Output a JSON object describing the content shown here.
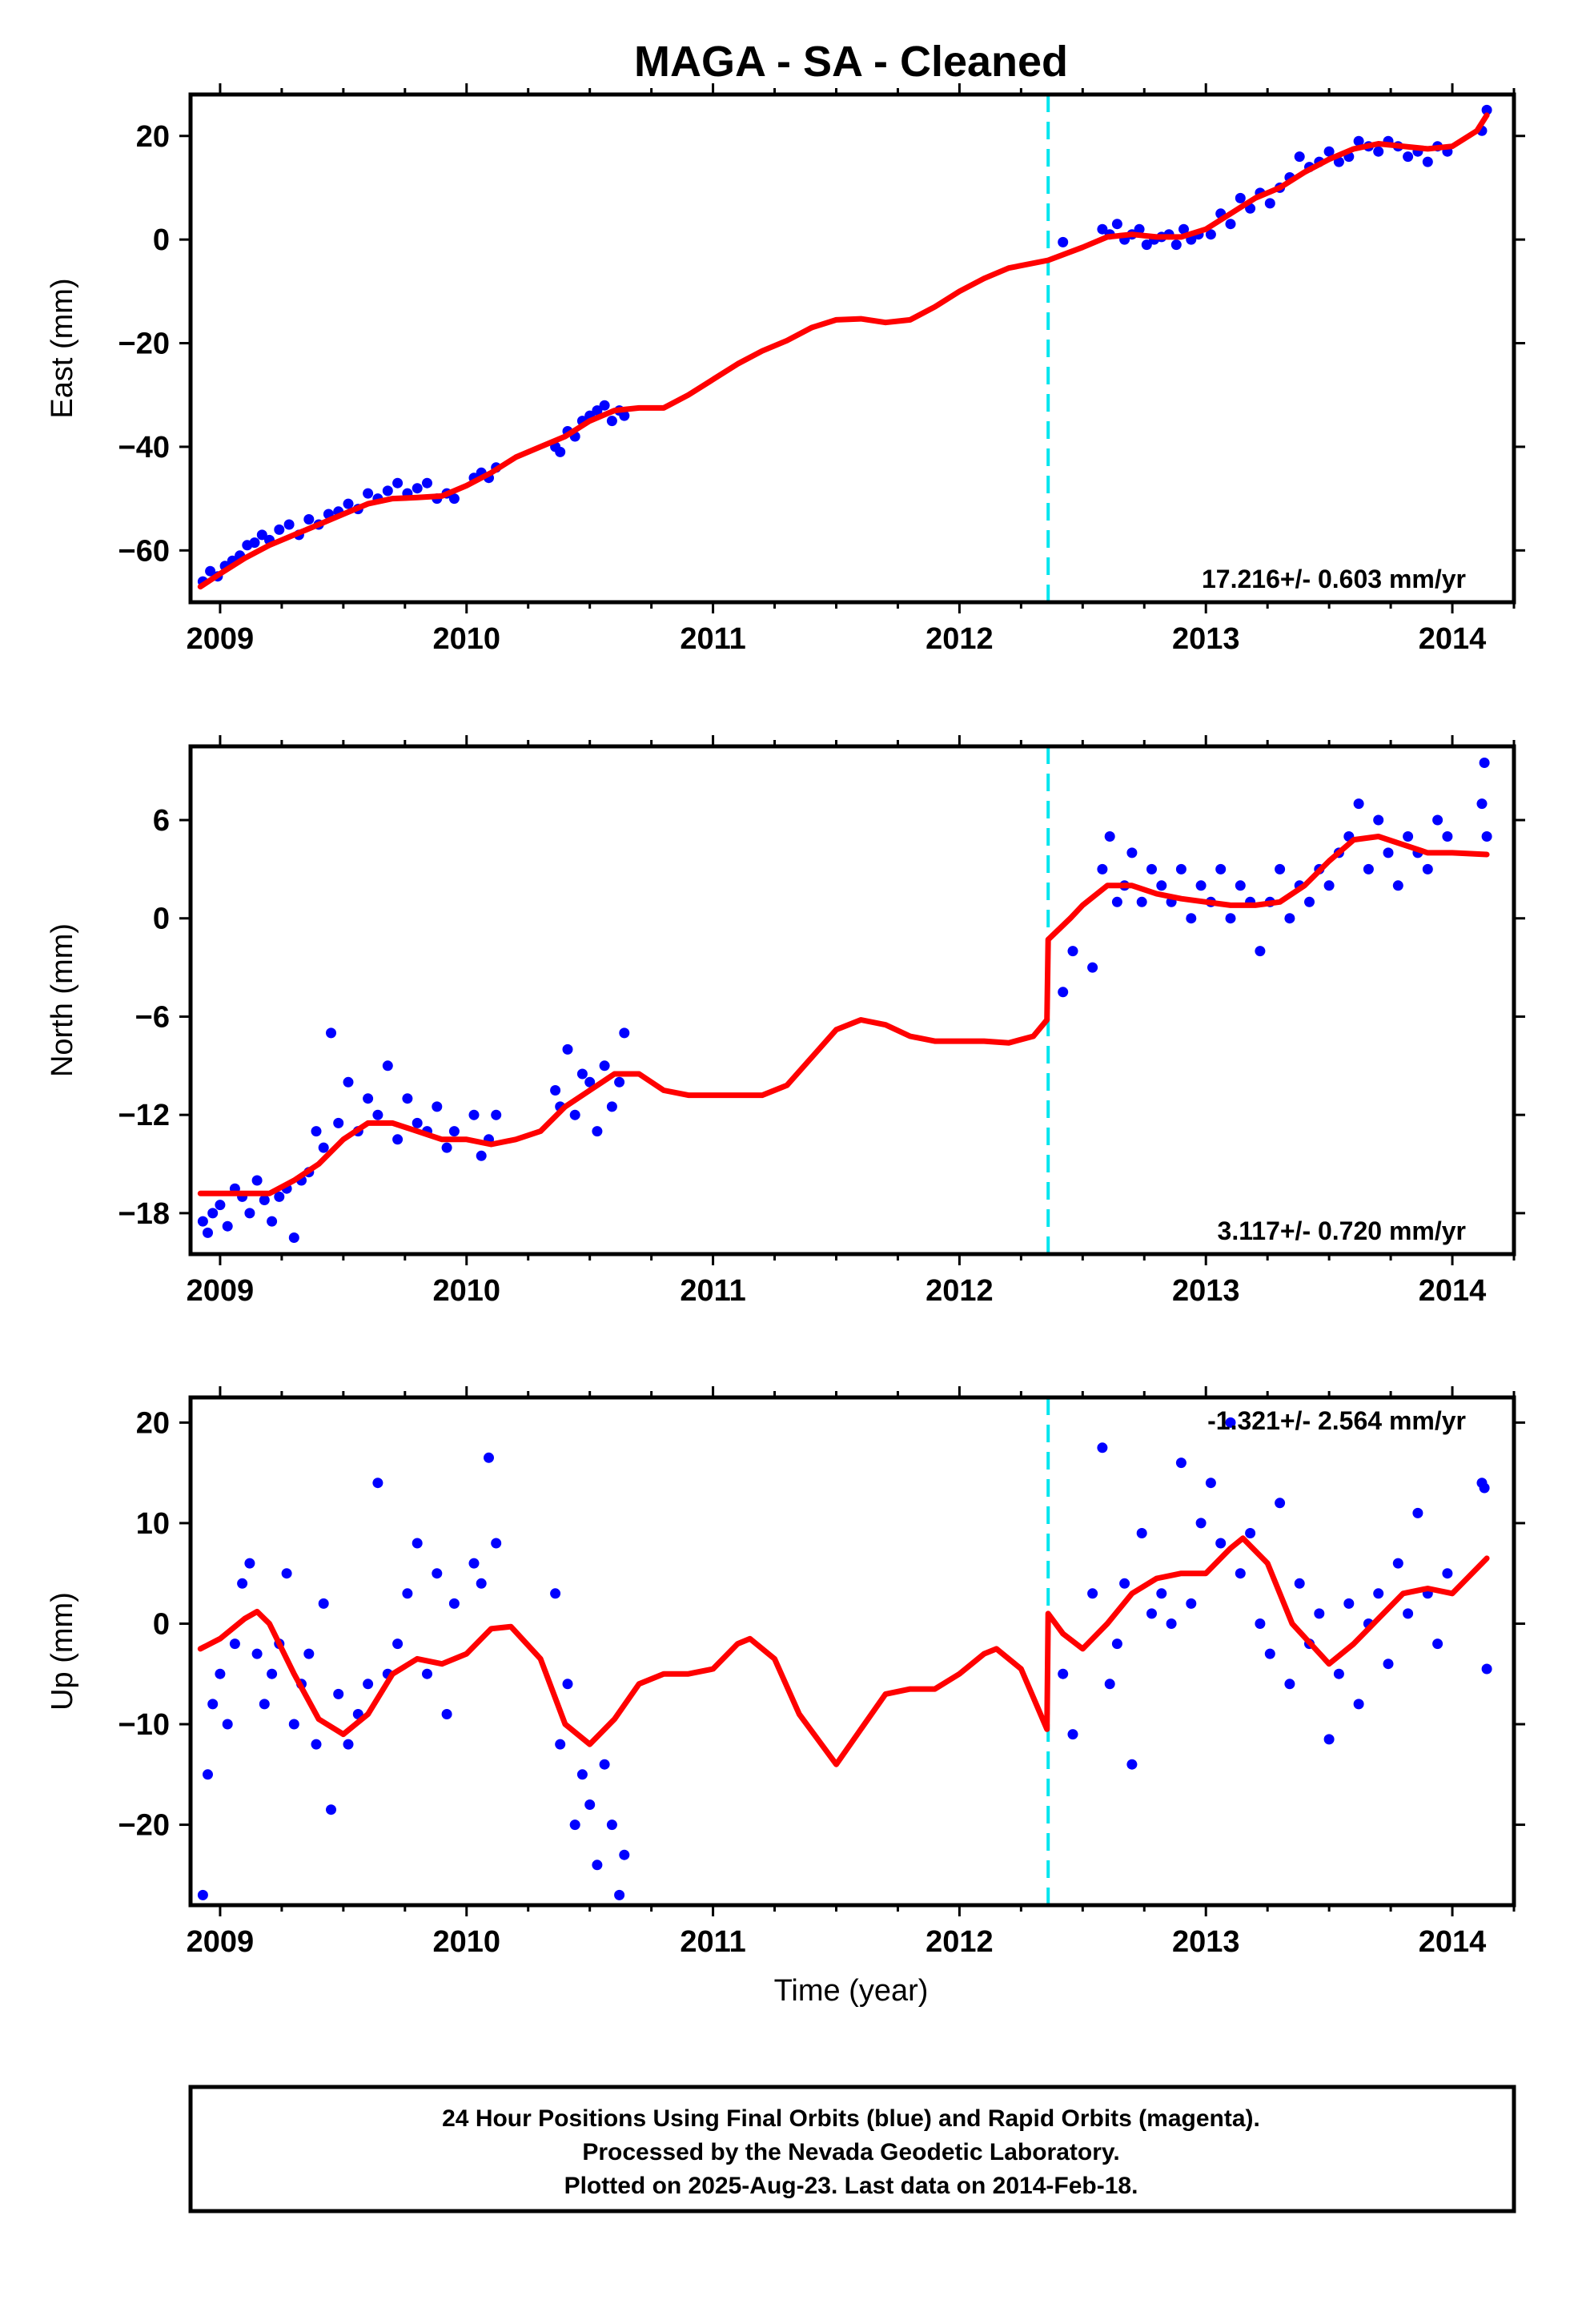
{
  "title": "MAGA  - SA - Cleaned",
  "xlabel": "Time (year)",
  "caption": {
    "line1": "24 Hour Positions Using Final Orbits (blue) and Rapid Orbits (magenta).",
    "line2": "Processed by the Nevada Geodetic Laboratory.",
    "line3": "Plotted on 2025-Aug-23. Last data on 2014-Feb-18."
  },
  "colors": {
    "data": "#0000ff",
    "model": "#ff0000",
    "offset": "#00e5ee",
    "axes": "#000000"
  },
  "chart_data": [
    {
      "type": "scatter",
      "ylabel": "East (mm)",
      "rate": "17.216+/- 0.603 mm/yr",
      "xlim": [
        2008.88,
        2014.25
      ],
      "ylim": [
        -70,
        28
      ],
      "xticks": [
        2009,
        2010,
        2011,
        2012,
        2013,
        2014
      ],
      "yticks": [
        -60,
        -40,
        -20,
        0,
        20
      ],
      "offset_line_x": 2012.36,
      "model": {
        "x": [
          2008.92,
          2009.0,
          2009.1,
          2009.2,
          2009.3,
          2009.4,
          2009.5,
          2009.6,
          2009.7,
          2009.8,
          2009.9,
          2010.0,
          2010.1,
          2010.2,
          2010.3,
          2010.4,
          2010.5,
          2010.6,
          2010.7,
          2010.8,
          2010.9,
          2011.0,
          2011.1,
          2011.2,
          2011.3,
          2011.4,
          2011.5,
          2011.6,
          2011.7,
          2011.8,
          2011.9,
          2012.0,
          2012.1,
          2012.2,
          2012.36,
          2012.5,
          2012.6,
          2012.7,
          2012.8,
          2012.9,
          2013.0,
          2013.1,
          2013.2,
          2013.3,
          2013.4,
          2013.5,
          2013.6,
          2013.7,
          2013.8,
          2013.9,
          2014.0,
          2014.1,
          2014.14
        ],
        "y": [
          -67,
          -64.5,
          -61.5,
          -59,
          -57,
          -55,
          -53,
          -51,
          -50,
          -49.8,
          -49.5,
          -47.5,
          -45,
          -42,
          -40,
          -38,
          -35,
          -33,
          -32.5,
          -32.5,
          -30,
          -27,
          -24,
          -21.5,
          -19.5,
          -17,
          -15.5,
          -15.3,
          -16,
          -15.5,
          -13,
          -10,
          -7.5,
          -5.5,
          -4,
          -1.5,
          0.5,
          1,
          0.5,
          0.5,
          2,
          5,
          8,
          10,
          13,
          15.5,
          17.5,
          18.5,
          18,
          17.5,
          18,
          21,
          24
        ]
      },
      "points": {
        "x": [
          2008.93,
          2008.96,
          2008.99,
          2009.02,
          2009.05,
          2009.08,
          2009.11,
          2009.14,
          2009.17,
          2009.2,
          2009.24,
          2009.28,
          2009.32,
          2009.36,
          2009.4,
          2009.44,
          2009.48,
          2009.52,
          2009.56,
          2009.6,
          2009.64,
          2009.68,
          2009.72,
          2009.76,
          2009.8,
          2009.84,
          2009.88,
          2009.92,
          2009.95,
          2010.03,
          2010.06,
          2010.09,
          2010.12,
          2010.36,
          2010.38,
          2010.41,
          2010.44,
          2010.47,
          2010.5,
          2010.53,
          2010.56,
          2010.59,
          2010.62,
          2010.64,
          2012.42,
          2012.58,
          2012.61,
          2012.64,
          2012.67,
          2012.7,
          2012.73,
          2012.76,
          2012.79,
          2012.82,
          2012.85,
          2012.88,
          2012.91,
          2012.94,
          2012.97,
          2013.02,
          2013.06,
          2013.1,
          2013.14,
          2013.18,
          2013.22,
          2013.26,
          2013.3,
          2013.34,
          2013.38,
          2013.42,
          2013.46,
          2013.5,
          2013.54,
          2013.58,
          2013.62,
          2013.66,
          2013.7,
          2013.74,
          2013.78,
          2013.82,
          2013.86,
          2013.9,
          2013.94,
          2013.98,
          2014.12,
          2014.14
        ],
        "y": [
          -66,
          -64,
          -65,
          -63,
          -62,
          -61,
          -59,
          -58.5,
          -57,
          -58,
          -56,
          -55,
          -57,
          -54,
          -55,
          -53,
          -52.5,
          -51,
          -52,
          -49,
          -50,
          -48.5,
          -47,
          -49,
          -48,
          -47,
          -50,
          -49,
          -50,
          -46,
          -45,
          -46,
          -44,
          -40,
          -41,
          -37,
          -38,
          -35,
          -34,
          -33,
          -32,
          -35,
          -33,
          -34,
          -0.5,
          2,
          1,
          3,
          0,
          1,
          2,
          -1,
          0,
          0.5,
          1,
          -1,
          2,
          0,
          1,
          1,
          5,
          3,
          8,
          6,
          9,
          7,
          10,
          12,
          16,
          14,
          15,
          17,
          15,
          16,
          19,
          18,
          17,
          19,
          18,
          16,
          17,
          15,
          18,
          17,
          21,
          25
        ]
      }
    },
    {
      "type": "scatter",
      "ylabel": "North (mm)",
      "rate": "3.117+/- 0.720 mm/yr",
      "xlim": [
        2008.88,
        2014.25
      ],
      "ylim": [
        -20.5,
        10.5
      ],
      "xticks": [
        2009,
        2010,
        2011,
        2012,
        2013,
        2014
      ],
      "yticks": [
        -18,
        -12,
        -6,
        0,
        6
      ],
      "offset_line_x": 2012.36,
      "model": {
        "x": [
          2008.92,
          2009.0,
          2009.1,
          2009.2,
          2009.3,
          2009.4,
          2009.5,
          2009.6,
          2009.7,
          2009.8,
          2009.9,
          2010.0,
          2010.1,
          2010.2,
          2010.3,
          2010.4,
          2010.5,
          2010.6,
          2010.7,
          2010.8,
          2010.9,
          2011.0,
          2011.1,
          2011.2,
          2011.3,
          2011.4,
          2011.5,
          2011.6,
          2011.7,
          2011.8,
          2011.9,
          2012.0,
          2012.1,
          2012.2,
          2012.3,
          2012.355,
          2012.36,
          2012.45,
          2012.5,
          2012.6,
          2012.7,
          2012.8,
          2012.9,
          2013.0,
          2013.1,
          2013.2,
          2013.3,
          2013.4,
          2013.5,
          2013.6,
          2013.7,
          2013.8,
          2013.9,
          2014.0,
          2014.14
        ],
        "y": [
          -16.8,
          -16.8,
          -16.8,
          -16.8,
          -16,
          -15,
          -13.5,
          -12.5,
          -12.5,
          -13,
          -13.5,
          -13.5,
          -13.8,
          -13.5,
          -13,
          -11.5,
          -10.5,
          -9.5,
          -9.5,
          -10.5,
          -10.8,
          -10.8,
          -10.8,
          -10.8,
          -10.2,
          -8.5,
          -6.8,
          -6.2,
          -6.5,
          -7.2,
          -7.5,
          -7.5,
          -7.5,
          -7.6,
          -7.2,
          -6.2,
          -1.3,
          0,
          0.8,
          2,
          2,
          1.5,
          1.2,
          1.0,
          0.8,
          0.8,
          1,
          2,
          3.5,
          4.8,
          5,
          4.5,
          4,
          4,
          3.9
        ]
      },
      "points": {
        "x": [
          2008.93,
          2008.95,
          2008.97,
          2009.0,
          2009.03,
          2009.06,
          2009.09,
          2009.12,
          2009.15,
          2009.18,
          2009.21,
          2009.24,
          2009.27,
          2009.3,
          2009.33,
          2009.36,
          2009.39,
          2009.42,
          2009.45,
          2009.48,
          2009.52,
          2009.56,
          2009.6,
          2009.64,
          2009.68,
          2009.72,
          2009.76,
          2009.8,
          2009.84,
          2009.88,
          2009.92,
          2009.95,
          2010.03,
          2010.06,
          2010.09,
          2010.12,
          2010.36,
          2010.38,
          2010.41,
          2010.44,
          2010.47,
          2010.5,
          2010.53,
          2010.56,
          2010.59,
          2010.62,
          2010.64,
          2012.42,
          2012.46,
          2012.54,
          2012.58,
          2012.61,
          2012.64,
          2012.67,
          2012.7,
          2012.74,
          2012.78,
          2012.82,
          2012.86,
          2012.9,
          2012.94,
          2012.98,
          2013.02,
          2013.06,
          2013.1,
          2013.14,
          2013.18,
          2013.22,
          2013.26,
          2013.3,
          2013.34,
          2013.38,
          2013.42,
          2013.46,
          2013.5,
          2013.54,
          2013.58,
          2013.62,
          2013.66,
          2013.7,
          2013.74,
          2013.78,
          2013.82,
          2013.86,
          2013.9,
          2013.94,
          2013.98,
          2014.12,
          2014.13,
          2014.14
        ],
        "y": [
          -18.5,
          -19.2,
          -18,
          -17.5,
          -18.8,
          -16.5,
          -17,
          -18,
          -16,
          -17.2,
          -18.5,
          -17,
          -16.5,
          -19.5,
          -16,
          -15.5,
          -13,
          -14,
          -7,
          -12.5,
          -10,
          -13,
          -11,
          -12,
          -9,
          -13.5,
          -11,
          -12.5,
          -13,
          -11.5,
          -14,
          -13,
          -12,
          -14.5,
          -13.5,
          -12,
          -10.5,
          -11.5,
          -8,
          -12,
          -9.5,
          -10,
          -13,
          -9,
          -11.5,
          -10,
          -7,
          -4.5,
          -2,
          -3,
          3,
          5,
          1,
          2,
          4,
          1,
          3,
          2,
          1,
          3,
          0,
          2,
          1,
          3,
          0,
          2,
          1,
          -2,
          1,
          3,
          0,
          2,
          1,
          3,
          2,
          4,
          5,
          7,
          3,
          6,
          4,
          2,
          5,
          4,
          3,
          6,
          5,
          7,
          9.5,
          5
        ]
      }
    },
    {
      "type": "scatter",
      "ylabel": "Up (mm)",
      "rate": "-1.321+/- 2.564 mm/yr",
      "xlim": [
        2008.88,
        2014.25
      ],
      "ylim": [
        -28,
        22.5
      ],
      "xticks": [
        2009,
        2010,
        2011,
        2012,
        2013,
        2014
      ],
      "yticks": [
        -20,
        -10,
        0,
        10,
        20
      ],
      "offset_line_x": 2012.36,
      "model": {
        "x": [
          2008.92,
          2009.0,
          2009.1,
          2009.15,
          2009.2,
          2009.3,
          2009.4,
          2009.5,
          2009.6,
          2009.7,
          2009.8,
          2009.9,
          2010.0,
          2010.1,
          2010.18,
          2010.3,
          2010.4,
          2010.5,
          2010.6,
          2010.7,
          2010.8,
          2010.9,
          2011.0,
          2011.1,
          2011.15,
          2011.25,
          2011.35,
          2011.5,
          2011.6,
          2011.7,
          2011.8,
          2011.9,
          2012.0,
          2012.1,
          2012.15,
          2012.25,
          2012.355,
          2012.36,
          2012.42,
          2012.5,
          2012.6,
          2012.7,
          2012.8,
          2012.9,
          2013.0,
          2013.1,
          2013.15,
          2013.25,
          2013.35,
          2013.5,
          2013.6,
          2013.7,
          2013.8,
          2013.9,
          2014.0,
          2014.14
        ],
        "y": [
          -2.5,
          -1.5,
          0.5,
          1.2,
          0,
          -5,
          -9.5,
          -11,
          -9,
          -5,
          -3.5,
          -4,
          -3,
          -0.5,
          -0.3,
          -3.5,
          -10,
          -12,
          -9.5,
          -6,
          -5,
          -5,
          -4.5,
          -2,
          -1.5,
          -3.5,
          -9,
          -14,
          -10.5,
          -7,
          -6.5,
          -6.5,
          -5,
          -3,
          -2.5,
          -4.5,
          -10.5,
          1,
          -1,
          -2.5,
          0,
          3,
          4.5,
          5,
          5,
          7.5,
          8.5,
          6,
          0,
          -4,
          -2,
          0.5,
          3,
          3.5,
          3,
          6.5
        ]
      },
      "points": {
        "x": [
          2008.93,
          2008.95,
          2008.97,
          2009.0,
          2009.03,
          2009.06,
          2009.09,
          2009.12,
          2009.15,
          2009.18,
          2009.21,
          2009.24,
          2009.27,
          2009.3,
          2009.33,
          2009.36,
          2009.39,
          2009.42,
          2009.45,
          2009.48,
          2009.52,
          2009.56,
          2009.6,
          2009.64,
          2009.68,
          2009.72,
          2009.76,
          2009.8,
          2009.84,
          2009.88,
          2009.92,
          2009.95,
          2010.03,
          2010.06,
          2010.09,
          2010.12,
          2010.36,
          2010.38,
          2010.41,
          2010.44,
          2010.47,
          2010.5,
          2010.53,
          2010.56,
          2010.59,
          2010.62,
          2010.64,
          2012.42,
          2012.46,
          2012.54,
          2012.58,
          2012.61,
          2012.64,
          2012.67,
          2012.7,
          2012.74,
          2012.78,
          2012.82,
          2012.86,
          2012.9,
          2012.94,
          2012.98,
          2013.02,
          2013.06,
          2013.1,
          2013.14,
          2013.18,
          2013.22,
          2013.26,
          2013.3,
          2013.34,
          2013.38,
          2013.42,
          2013.46,
          2013.5,
          2013.54,
          2013.58,
          2013.62,
          2013.66,
          2013.7,
          2013.74,
          2013.78,
          2013.82,
          2013.86,
          2013.9,
          2013.94,
          2013.98,
          2014.12,
          2014.13,
          2014.14
        ],
        "y": [
          -27,
          -15,
          -8,
          -5,
          -10,
          -2,
          4,
          6,
          -3,
          -8,
          -5,
          -2,
          5,
          -10,
          -6,
          -3,
          -12,
          2,
          -18.5,
          -7,
          -12,
          -9,
          -6,
          14,
          -5,
          -2,
          3,
          8,
          -5,
          5,
          -9,
          2,
          6,
          4,
          16.5,
          8,
          3,
          -12,
          -6,
          -20,
          -15,
          -18,
          -24,
          -14,
          -20,
          -27,
          -23,
          -5,
          -11,
          3,
          17.5,
          -6,
          -2,
          4,
          -14,
          9,
          1,
          3,
          0,
          16,
          2,
          10,
          14,
          8,
          20,
          5,
          9,
          0,
          -3,
          12,
          -6,
          4,
          -2,
          1,
          -11.5,
          -5,
          2,
          -8,
          0,
          3,
          -4,
          6,
          1,
          11,
          3,
          -2,
          5,
          14,
          13.5,
          -4.5
        ]
      }
    }
  ]
}
